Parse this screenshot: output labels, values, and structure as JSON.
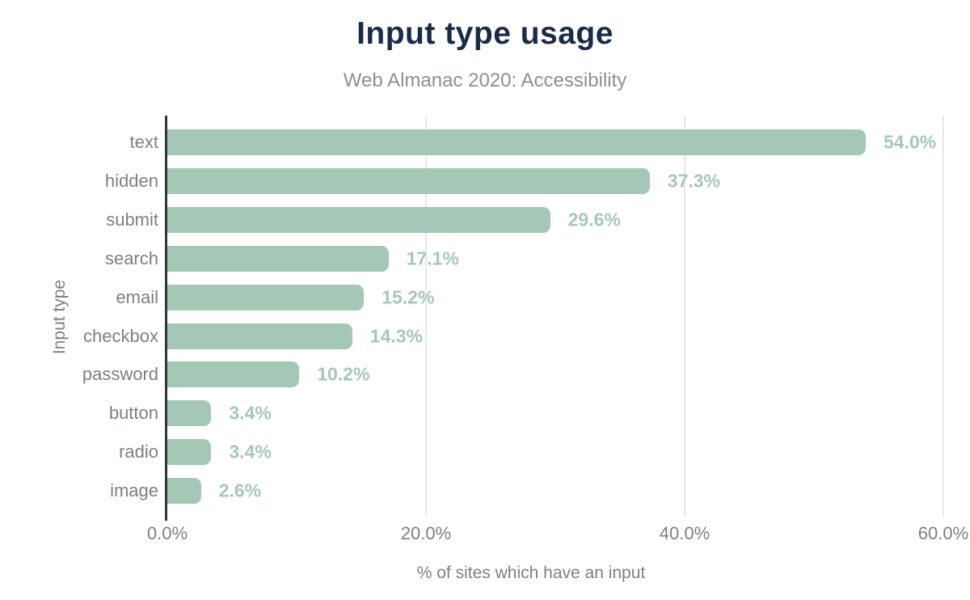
{
  "chart_data": {
    "type": "bar",
    "orientation": "horizontal",
    "title": "Input type usage",
    "subtitle": "Web Almanac 2020: Accessibility",
    "xlabel": "% of sites which have an input",
    "ylabel": "Input type",
    "categories": [
      "text",
      "hidden",
      "submit",
      "search",
      "email",
      "checkbox",
      "password",
      "button",
      "radio",
      "image"
    ],
    "values": [
      54.0,
      37.3,
      29.6,
      17.1,
      15.2,
      14.3,
      10.2,
      3.4,
      3.4,
      2.6
    ],
    "value_labels": [
      "54.0%",
      "37.3%",
      "29.6%",
      "17.1%",
      "15.2%",
      "14.3%",
      "10.2%",
      "3.4%",
      "3.4%",
      "2.6%"
    ],
    "xlim": [
      0,
      60
    ],
    "xticks": [
      {
        "value": 0,
        "label": "0.0%"
      },
      {
        "value": 20,
        "label": "20.0%"
      },
      {
        "value": 40,
        "label": "40.0%"
      },
      {
        "value": 60,
        "label": "60.0%"
      }
    ],
    "grid": "vertical-lines-at-nonzero-ticks",
    "legend": "none",
    "colors": {
      "background": "#ffffff",
      "bar": "#a5c8b6",
      "value_label": "#a5c8b6",
      "title": "#1a2b49",
      "subtitle": "#8a9098",
      "axis_text": "#7b8086",
      "axis_line": "#31363b",
      "gridline": "#e8e8e8"
    }
  }
}
